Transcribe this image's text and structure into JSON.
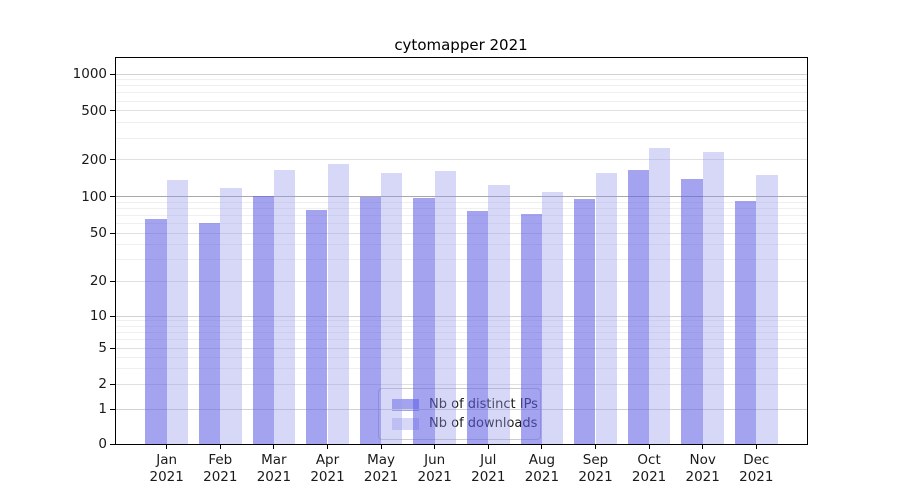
{
  "title": "cytomapper 2021",
  "legend": {
    "items": [
      {
        "label": "Nb of distinct IPs"
      },
      {
        "label": "Nb of downloads"
      }
    ]
  },
  "chart_data": {
    "type": "bar",
    "title": "cytomapper 2021",
    "categories_months": [
      "Jan",
      "Feb",
      "Mar",
      "Apr",
      "May",
      "Jun",
      "Jul",
      "Aug",
      "Sep",
      "Oct",
      "Nov",
      "Dec"
    ],
    "categories_year": "2021",
    "series": [
      {
        "name": "Nb of distinct IPs",
        "color": "rgba(96,96,230,0.58)",
        "values": [
          65,
          61,
          101,
          78,
          100,
          97,
          77,
          72,
          95,
          166,
          140,
          93
        ]
      },
      {
        "name": "Nb of downloads",
        "color": "rgba(150,150,235,0.38)",
        "values": [
          136,
          117,
          164,
          183,
          156,
          163,
          125,
          110,
          155,
          250,
          232,
          149
        ]
      }
    ],
    "y_ticks": [
      0,
      1,
      2,
      5,
      10,
      20,
      50,
      100,
      200,
      500,
      1000
    ],
    "y_scale": "symlog",
    "ylim": [
      0,
      1000
    ],
    "grid": true,
    "legend_position": "lower center"
  }
}
